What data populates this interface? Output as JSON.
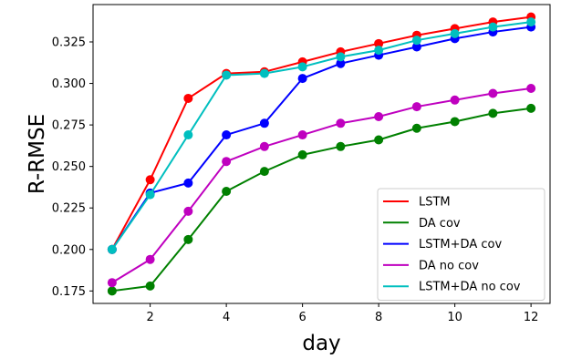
{
  "chart_data": {
    "type": "line",
    "title": "",
    "xlabel": "day",
    "ylabel": "R-RMSE",
    "xlim": [
      0.5,
      12.5
    ],
    "ylim": [
      0.1675,
      0.3475
    ],
    "xticks": [
      2,
      4,
      6,
      8,
      10,
      12
    ],
    "yticks": [
      0.175,
      0.2,
      0.225,
      0.25,
      0.275,
      0.3,
      0.325
    ],
    "ytick_labels": [
      "0.175",
      "0.200",
      "0.225",
      "0.250",
      "0.275",
      "0.300",
      "0.325"
    ],
    "grid": false,
    "legend_position": "lower-right",
    "x": [
      1,
      2,
      3,
      4,
      5,
      6,
      7,
      8,
      9,
      10,
      11,
      12
    ],
    "series": [
      {
        "name": "LSTM",
        "color": "#ff0000",
        "values": [
          0.2,
          0.242,
          0.291,
          0.306,
          0.307,
          0.313,
          0.319,
          0.324,
          0.329,
          0.333,
          0.337,
          0.34
        ]
      },
      {
        "name": "DA cov",
        "color": "#008000",
        "values": [
          0.175,
          0.178,
          0.206,
          0.235,
          0.247,
          0.257,
          0.262,
          0.266,
          0.273,
          0.277,
          0.282,
          0.285
        ]
      },
      {
        "name": "LSTM+DA cov",
        "color": "#0000ff",
        "values": [
          0.2,
          0.234,
          0.24,
          0.269,
          0.276,
          0.303,
          0.312,
          0.317,
          0.322,
          0.327,
          0.331,
          0.334
        ]
      },
      {
        "name": "DA no cov",
        "color": "#bf00bf",
        "values": [
          0.18,
          0.194,
          0.223,
          0.253,
          0.262,
          0.269,
          0.276,
          0.28,
          0.286,
          0.29,
          0.294,
          0.297
        ]
      },
      {
        "name": "LSTM+DA no cov",
        "color": "#00bfbf",
        "values": [
          0.2,
          0.233,
          0.269,
          0.305,
          0.306,
          0.31,
          0.316,
          0.32,
          0.326,
          0.33,
          0.334,
          0.337
        ]
      }
    ]
  }
}
